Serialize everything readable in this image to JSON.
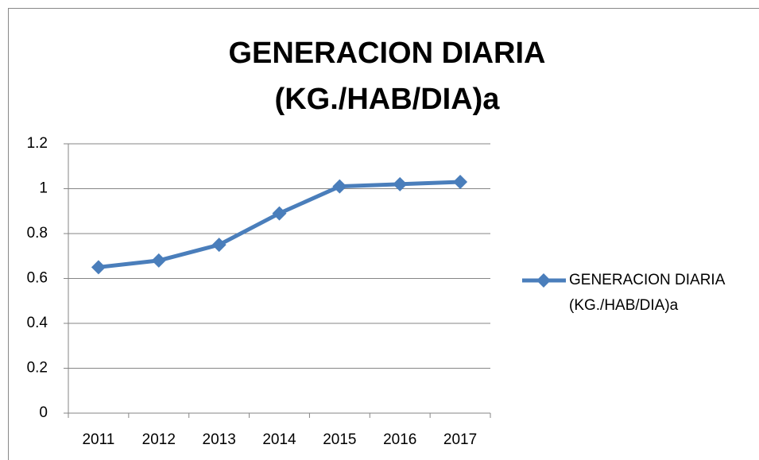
{
  "chart_data": {
    "type": "line",
    "title": "GENERACION DIARIA (KG./HAB/DIA)a",
    "categories": [
      "2011",
      "2012",
      "2013",
      "2014",
      "2015",
      "2016",
      "2017"
    ],
    "series": [
      {
        "name": "GENERACION DIARIA (KG./HAB/DIA)a",
        "color": "#4a7ebb",
        "values": [
          0.65,
          0.68,
          0.75,
          0.89,
          1.01,
          1.02,
          1.03
        ]
      }
    ],
    "ylim": [
      0,
      1.2
    ],
    "yticks": [
      0,
      0.2,
      0.4,
      0.6,
      0.8,
      1,
      1.2
    ],
    "grid": true,
    "legend": "right"
  }
}
